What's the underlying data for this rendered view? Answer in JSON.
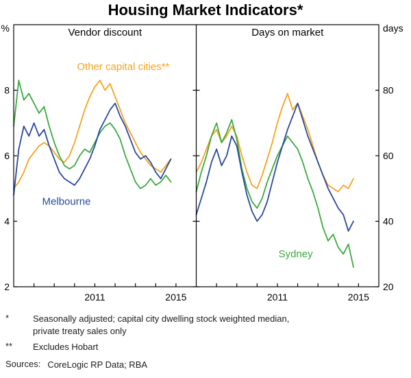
{
  "title": "Housing Market Indicators*",
  "axis_left_unit": "%",
  "axis_right_unit": "days",
  "chart_data": {
    "type": "line",
    "xlim": [
      2007,
      2016
    ],
    "x_years": [
      2007.0,
      2007.25,
      2007.5,
      2007.75,
      2008.0,
      2008.25,
      2008.5,
      2008.75,
      2009.0,
      2009.25,
      2009.5,
      2009.75,
      2010.0,
      2010.25,
      2010.5,
      2010.75,
      2011.0,
      2011.25,
      2011.5,
      2011.75,
      2012.0,
      2012.25,
      2012.5,
      2012.75,
      2013.0,
      2013.25,
      2013.5,
      2013.75,
      2014.0,
      2014.25,
      2014.5,
      2014.75
    ],
    "x_year_ticks": [
      2008,
      2009,
      2010,
      2011,
      2012,
      2013,
      2014,
      2015
    ],
    "x_tick_label_years": [
      2011,
      2015
    ],
    "x_tick_labels": [
      "2011",
      "2015"
    ],
    "panels": [
      {
        "title": "Vendor discount",
        "axis": "left",
        "unit": "%",
        "ylim": [
          2,
          10
        ],
        "yticks": [
          2,
          4,
          6,
          8
        ],
        "series": [
          {
            "name": "Other capital cities**",
            "color": "#f5a21d",
            "values": [
              5.0,
              5.2,
              5.5,
              5.9,
              6.1,
              6.3,
              6.4,
              6.3,
              6.1,
              5.9,
              5.8,
              6.0,
              6.4,
              6.9,
              7.4,
              7.8,
              8.1,
              8.3,
              8.0,
              8.2,
              7.8,
              7.4,
              7.0,
              6.7,
              6.4,
              6.1,
              5.9,
              5.7,
              5.6,
              5.5,
              5.7,
              5.9
            ]
          },
          {
            "name": "Sydney",
            "color": "#3aa93d",
            "values": [
              6.9,
              8.3,
              7.7,
              7.9,
              7.6,
              7.3,
              7.5,
              6.9,
              6.4,
              6.0,
              5.7,
              5.6,
              5.7,
              6.0,
              6.2,
              6.1,
              6.4,
              6.7,
              6.9,
              7.0,
              6.8,
              6.5,
              6.0,
              5.6,
              5.2,
              5.0,
              5.1,
              5.3,
              5.1,
              5.2,
              5.4,
              5.2
            ]
          },
          {
            "name": "Melbourne",
            "color": "#27489d",
            "values": [
              4.8,
              6.2,
              6.9,
              6.6,
              7.0,
              6.6,
              6.8,
              6.3,
              5.9,
              5.5,
              5.3,
              5.2,
              5.1,
              5.3,
              5.6,
              5.9,
              6.3,
              6.8,
              7.1,
              7.4,
              7.6,
              7.2,
              6.9,
              6.5,
              6.1,
              5.9,
              6.0,
              5.8,
              5.5,
              5.3,
              5.6,
              5.9
            ]
          }
        ],
        "labels": [
          {
            "text": "Other capital cities**",
            "x": 2012.4,
            "y": 8.62,
            "color": "#f5a21d",
            "anchor": "middle"
          },
          {
            "text": "Melbourne",
            "x": 2009.6,
            "y": 4.5,
            "color": "#27489d",
            "anchor": "middle"
          }
        ]
      },
      {
        "title": "Days on market",
        "axis": "right",
        "unit": "days",
        "ylim": [
          20,
          100
        ],
        "yticks": [
          20,
          40,
          60,
          80
        ],
        "series": [
          {
            "name": "Other capital cities**",
            "color": "#f5a21d",
            "values": [
              55,
              58,
              62,
              66,
              68,
              64,
              66,
              69,
              66,
              60,
              55,
              51,
              50,
              54,
              59,
              64,
              70,
              75,
              79,
              74,
              76,
              72,
              68,
              63,
              58,
              54,
              51,
              50,
              49,
              51,
              50,
              53
            ]
          },
          {
            "name": "Sydney",
            "color": "#3aa93d",
            "values": [
              49,
              55,
              60,
              66,
              70,
              64,
              67,
              71,
              65,
              56,
              50,
              46,
              44,
              47,
              52,
              56,
              60,
              63,
              66,
              64,
              62,
              58,
              53,
              49,
              44,
              38,
              34,
              36,
              32,
              30,
              33,
              26
            ]
          },
          {
            "name": "Melbourne",
            "color": "#27489d",
            "values": [
              42,
              47,
              52,
              58,
              62,
              57,
              60,
              66,
              63,
              55,
              48,
              43,
              40,
              42,
              46,
              52,
              58,
              63,
              68,
              72,
              76,
              71,
              66,
              62,
              58,
              54,
              50,
              47,
              44,
              42,
              37,
              40
            ]
          }
        ],
        "labels": [
          {
            "text": "Sydney",
            "x": 2011.9,
            "y": 29,
            "color": "#3aa93d",
            "anchor": "middle"
          }
        ]
      }
    ]
  },
  "footnotes": [
    {
      "marker": "*",
      "text": "Seasonally adjusted; capital city dwelling stock weighted median,\nprivate treaty sales only"
    },
    {
      "marker": "**",
      "text": "Excludes Hobart"
    }
  ],
  "sources": {
    "label": "Sources:",
    "text": "CoreLogic RP Data; RBA"
  }
}
